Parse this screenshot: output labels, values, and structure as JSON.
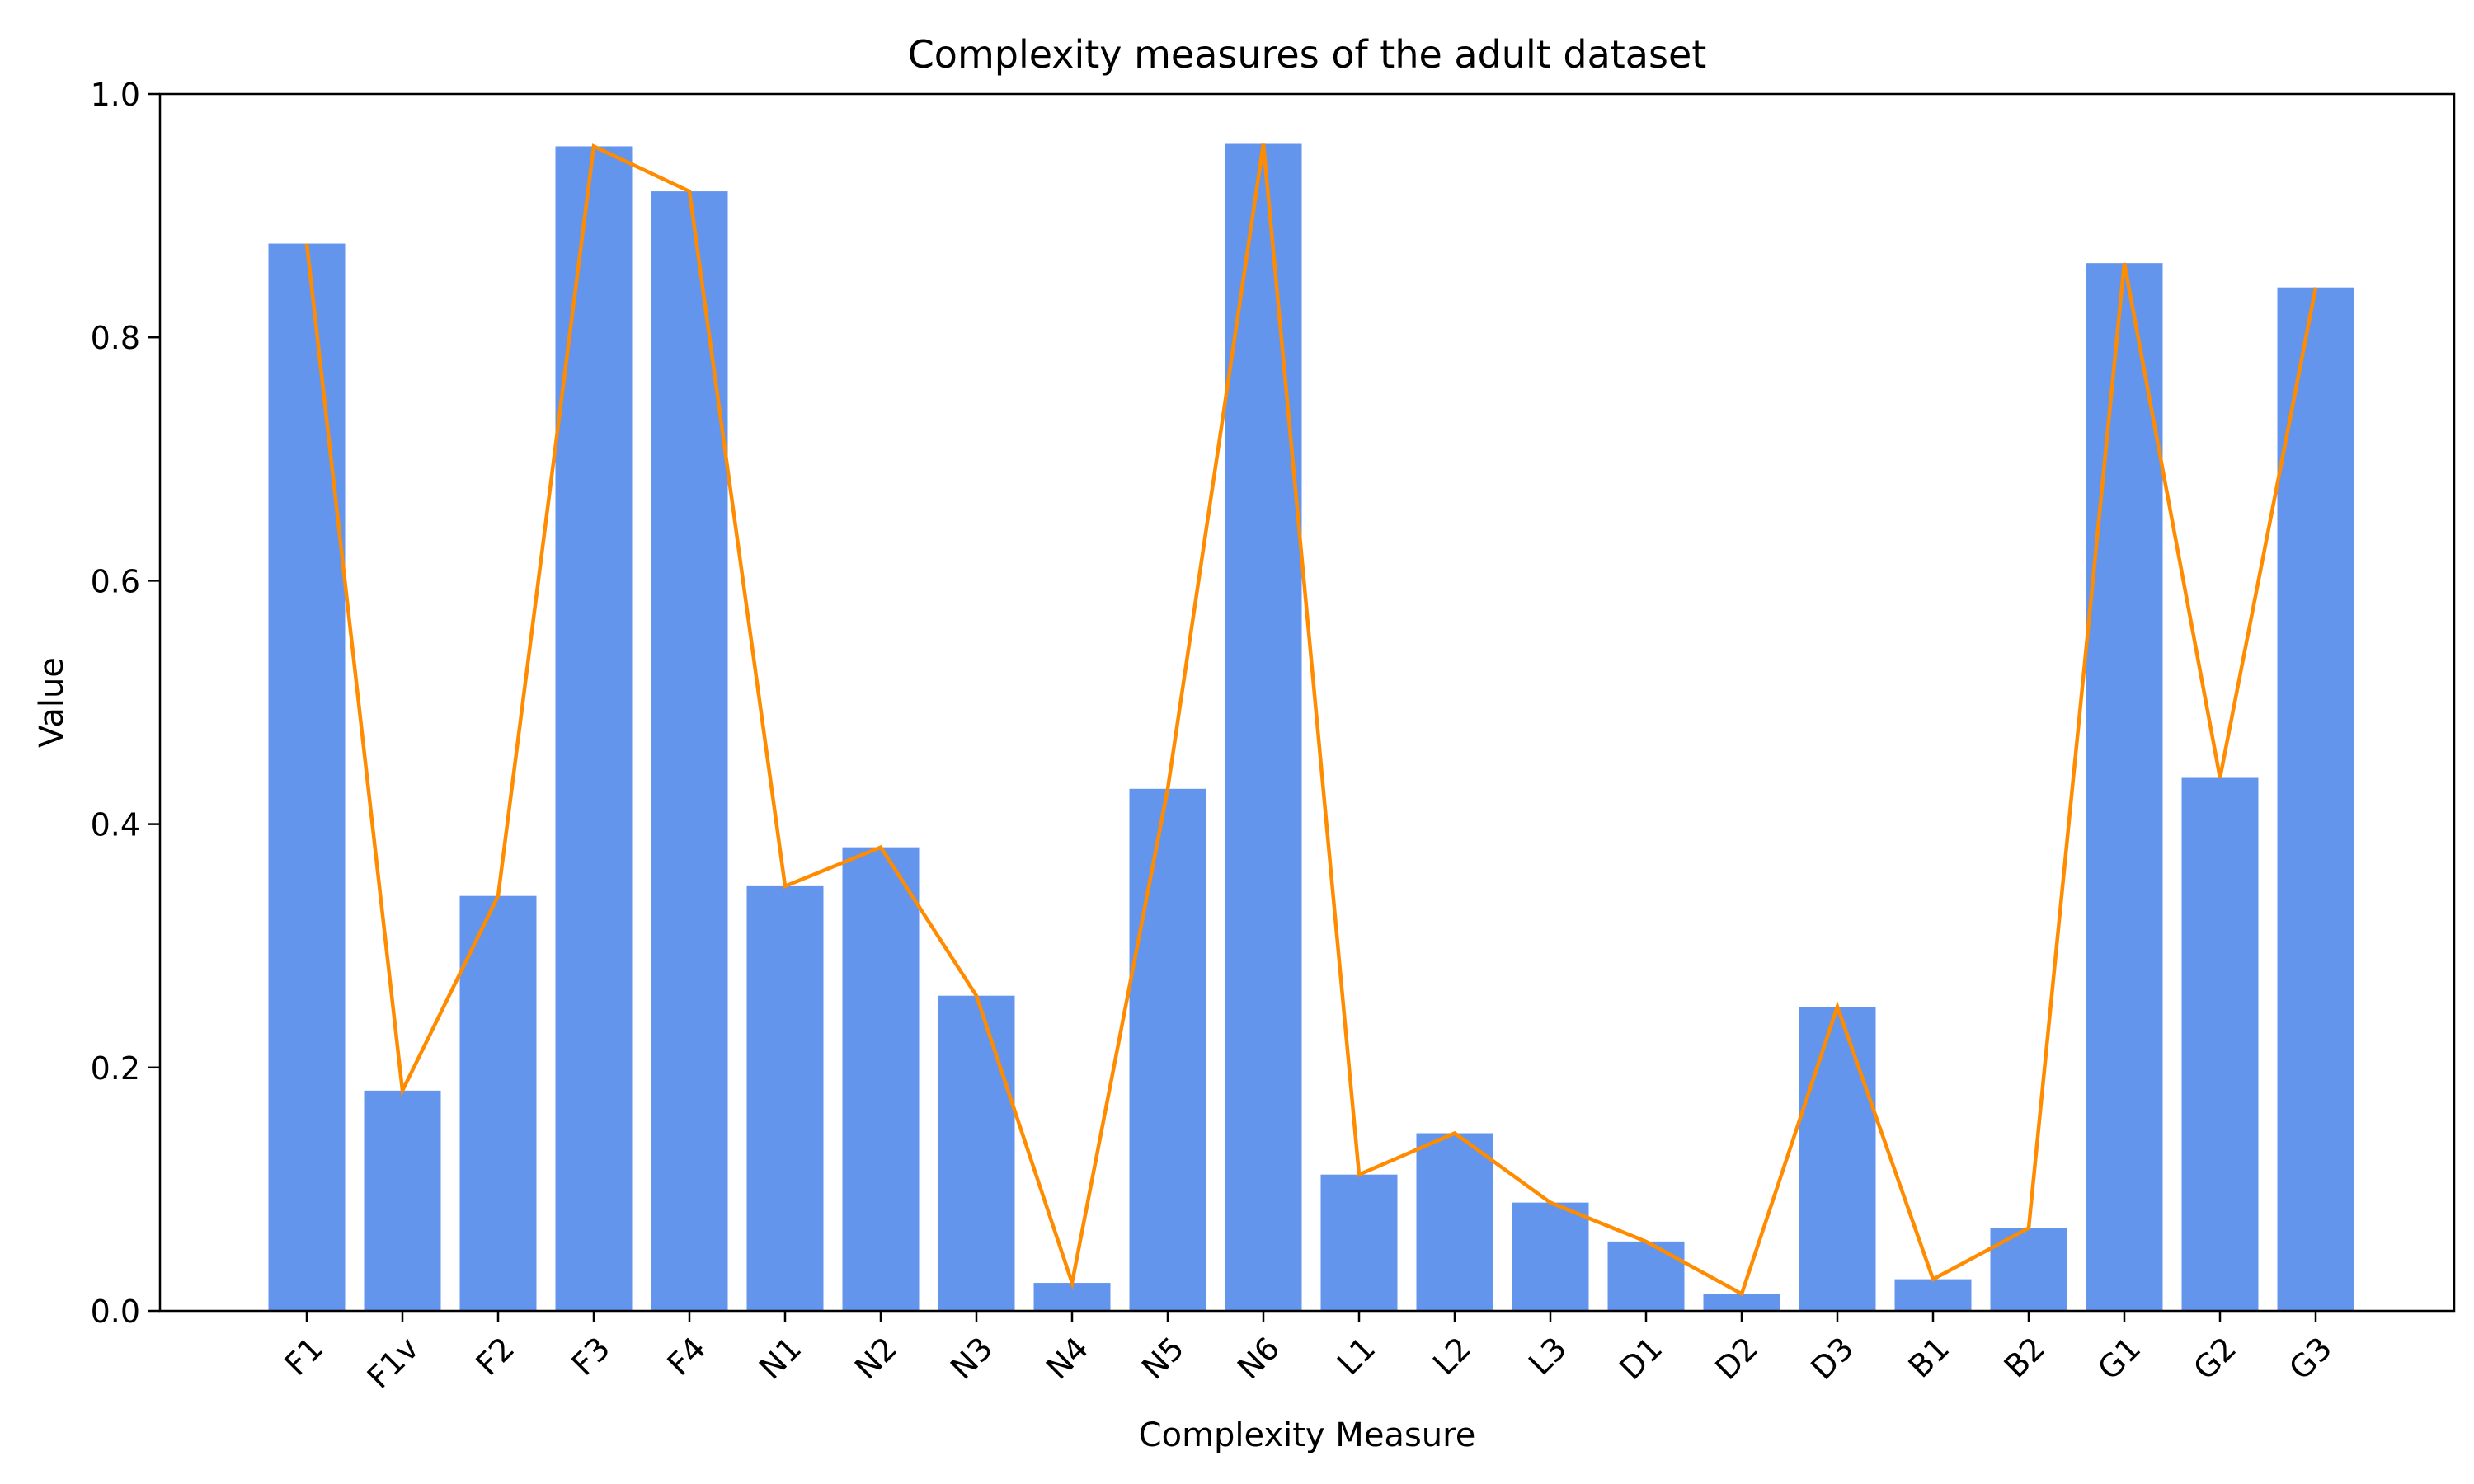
{
  "chart_data": {
    "type": "bar",
    "title": "Complexity measures of the adult dataset",
    "xlabel": "Complexity Measure",
    "ylabel": "Value",
    "ylim": [
      0,
      1.0
    ],
    "yticks": [
      "0.0",
      "0.2",
      "0.4",
      "0.6",
      "0.8",
      "1.0"
    ],
    "grid": false,
    "legend": "none",
    "categories": [
      "F1",
      "F1v",
      "F2",
      "F3",
      "F4",
      "N1",
      "N2",
      "N3",
      "N4",
      "N5",
      "N6",
      "L1",
      "L2",
      "L3",
      "D1",
      "D2",
      "D3",
      "B1",
      "B2",
      "G1",
      "G2",
      "G3"
    ],
    "series": [
      {
        "type": "bar",
        "color": "#6495ED",
        "values": [
          0.877,
          0.181,
          0.341,
          0.957,
          0.92,
          0.349,
          0.381,
          0.259,
          0.023,
          0.429,
          0.959,
          0.112,
          0.146,
          0.089,
          0.057,
          0.014,
          0.25,
          0.026,
          0.068,
          0.861,
          0.438,
          0.841
        ]
      },
      {
        "type": "line",
        "color": "#FF8C00",
        "values": [
          0.877,
          0.181,
          0.341,
          0.957,
          0.92,
          0.349,
          0.381,
          0.259,
          0.023,
          0.429,
          0.959,
          0.112,
          0.146,
          0.089,
          0.057,
          0.014,
          0.25,
          0.026,
          0.068,
          0.861,
          0.438,
          0.841
        ]
      }
    ]
  }
}
